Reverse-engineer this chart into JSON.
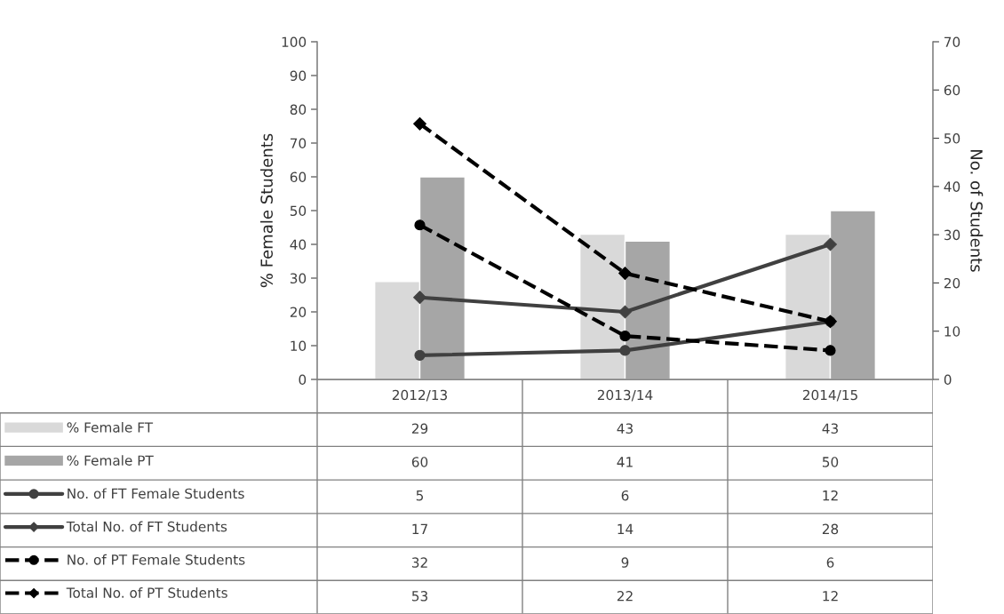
{
  "chart_data": {
    "type": "bar",
    "categories": [
      "2012/13",
      "2013/14",
      "2014/15"
    ],
    "ylabel": "% Female Students",
    "y2label": "No. of Students",
    "ylim": [
      0,
      100
    ],
    "yticks": [
      0,
      10,
      20,
      30,
      40,
      50,
      60,
      70,
      80,
      90,
      100
    ],
    "y2lim": [
      0,
      70
    ],
    "y2ticks": [
      0,
      10,
      20,
      30,
      40,
      50,
      60,
      70
    ],
    "grid": false,
    "legend": "bottom",
    "data_labels": true,
    "series": [
      {
        "name": "% Female FT",
        "color": "#d9d9d9",
        "values": [
          29,
          43,
          43
        ]
      },
      {
        "name": "% Female PT",
        "color": "#a6a6a6",
        "values": [
          60,
          41,
          50
        ]
      },
      {
        "name": "No. of FT Female Students",
        "type": "line",
        "axis": "y2",
        "color": "#404040",
        "marker": "circle",
        "line_style": "solid",
        "values": [
          5,
          6,
          12
        ]
      },
      {
        "name": "Total No. of FT Students",
        "type": "line",
        "axis": "y2",
        "color": "#404040",
        "marker": "diamond",
        "line_style": "solid",
        "values": [
          17,
          14,
          28
        ]
      },
      {
        "name": "No. of PT Female Students",
        "type": "line",
        "axis": "y2",
        "color": "#000000",
        "marker": "circle",
        "line_style": "dashed",
        "values": [
          32,
          9,
          6
        ]
      },
      {
        "name": "Total No. of PT Students",
        "type": "line",
        "axis": "y2",
        "color": "#000000",
        "marker": "diamond",
        "line_style": "dashed",
        "values": [
          53,
          22,
          12
        ]
      }
    ]
  }
}
